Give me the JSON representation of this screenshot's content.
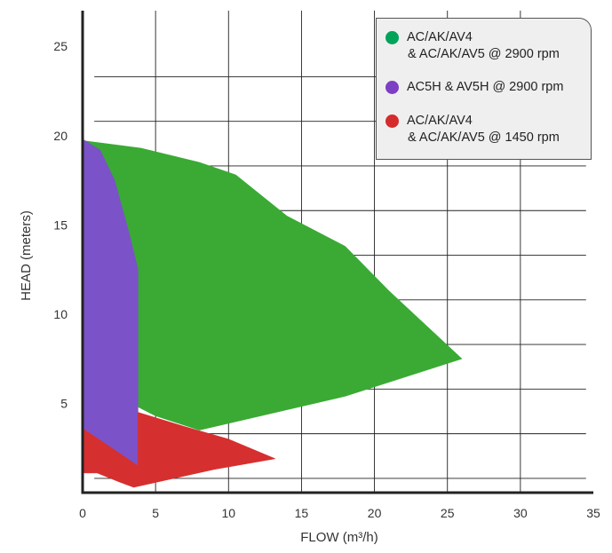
{
  "chart_data": {
    "type": "area",
    "xlabel": "FLOW (m³/h)",
    "ylabel": "HEAD (meters)",
    "xlim": [
      0,
      35
    ],
    "ylim": [
      0,
      27
    ],
    "x_ticks": [
      "0",
      "5",
      "10",
      "15",
      "20",
      "25",
      "30",
      "35"
    ],
    "y_ticks": [
      "5",
      "10",
      "15",
      "20",
      "25"
    ],
    "grid": true,
    "legend_position": "top-right",
    "series": [
      {
        "name": "AC/AK/AV4\n& AC/AK/AV5 @ 2900 rpm",
        "color": "#3aaa35",
        "points": [
          [
            0.2,
            19.7
          ],
          [
            4,
            19.3
          ],
          [
            8,
            18.5
          ],
          [
            10.5,
            17.8
          ],
          [
            14,
            15.5
          ],
          [
            18,
            13.8
          ],
          [
            21,
            11.3
          ],
          [
            26,
            7.5
          ],
          [
            18,
            5.4
          ],
          [
            8,
            3.5
          ],
          [
            5,
            4.3
          ],
          [
            3.8,
            4.8
          ],
          [
            3.8,
            12.5
          ]
        ]
      },
      {
        "name": "AC5H & AV5H @ 2900 rpm",
        "color": "#7b52c7",
        "points": [
          [
            0,
            19.8
          ],
          [
            1.2,
            19.2
          ],
          [
            2.2,
            17.5
          ],
          [
            3.2,
            14.5
          ],
          [
            3.8,
            12.5
          ],
          [
            3.8,
            1.5
          ],
          [
            0,
            3.6
          ]
        ]
      },
      {
        "name": "AC/AK/AV4\n& AC/AK/AV5 @ 1450 rpm",
        "color": "#d62f2f",
        "points": [
          [
            0,
            3.6
          ],
          [
            3.8,
            1.5
          ],
          [
            3.8,
            4.5
          ],
          [
            7,
            3.7
          ],
          [
            10,
            3
          ],
          [
            13.2,
            1.9
          ],
          [
            9,
            1.3
          ],
          [
            3.5,
            0.3
          ],
          [
            2.5,
            0.6
          ],
          [
            1,
            1.1
          ],
          [
            0,
            1.1
          ]
        ]
      }
    ]
  },
  "legend": {
    "items": [
      {
        "line1": "AC/AK/AV4",
        "line2": "& AC/AK/AV5 @ 2900 rpm",
        "color": "#00a35a"
      },
      {
        "line1": "AC5H & AV5H @ 2900 rpm",
        "line2": "",
        "color": "#7d3fc4"
      },
      {
        "line1": "AC/AK/AV4",
        "line2": "& AC/AK/AV5 @ 1450 rpm",
        "color": "#d52b2b"
      }
    ]
  }
}
